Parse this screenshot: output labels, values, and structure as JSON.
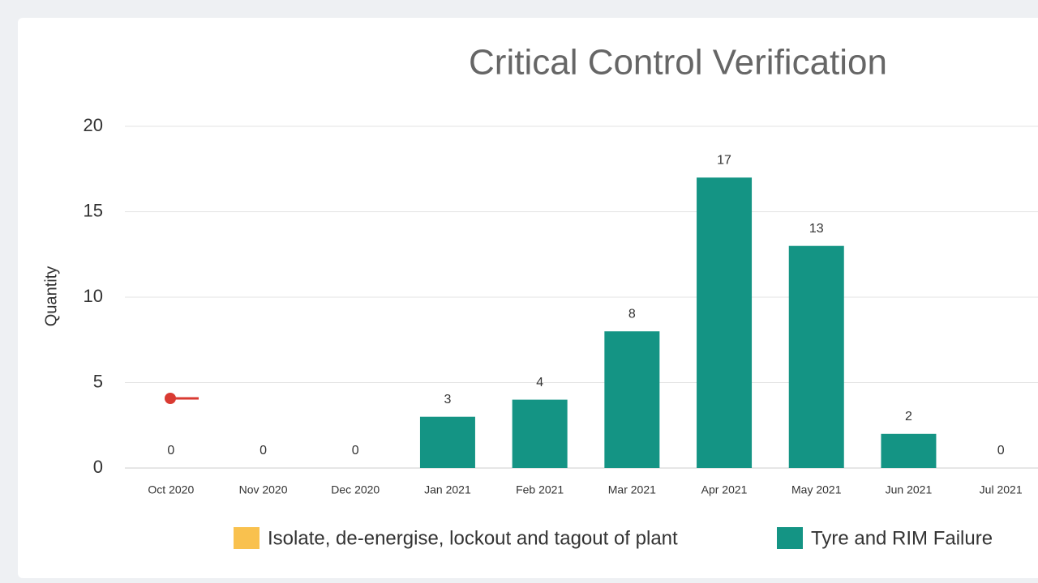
{
  "chart_data": {
    "type": "bar",
    "title": "Critical Control Verification",
    "y_label": "Quantity",
    "categories": [
      "Oct 2020",
      "Nov 2020",
      "Dec 2020",
      "Jan 2021",
      "Feb 2021",
      "Mar 2021",
      "Apr 2021",
      "May 2021",
      "Jun 2021",
      "Jul 2021"
    ],
    "series": [
      {
        "name": "Isolate, de-energise, lockout and tagout of plant",
        "color": "#f9c14e",
        "values": [
          null,
          null,
          null,
          null,
          null,
          null,
          null,
          null,
          null,
          null
        ]
      },
      {
        "name": "Tyre and RIM Failure",
        "color": "#149484",
        "values": [
          0,
          0,
          0,
          3,
          4,
          8,
          17,
          13,
          2,
          0
        ]
      }
    ],
    "ylim": [
      0,
      20
    ],
    "yticks": [
      0,
      5,
      10,
      15,
      20
    ],
    "grid": true,
    "legend": "bottom"
  }
}
